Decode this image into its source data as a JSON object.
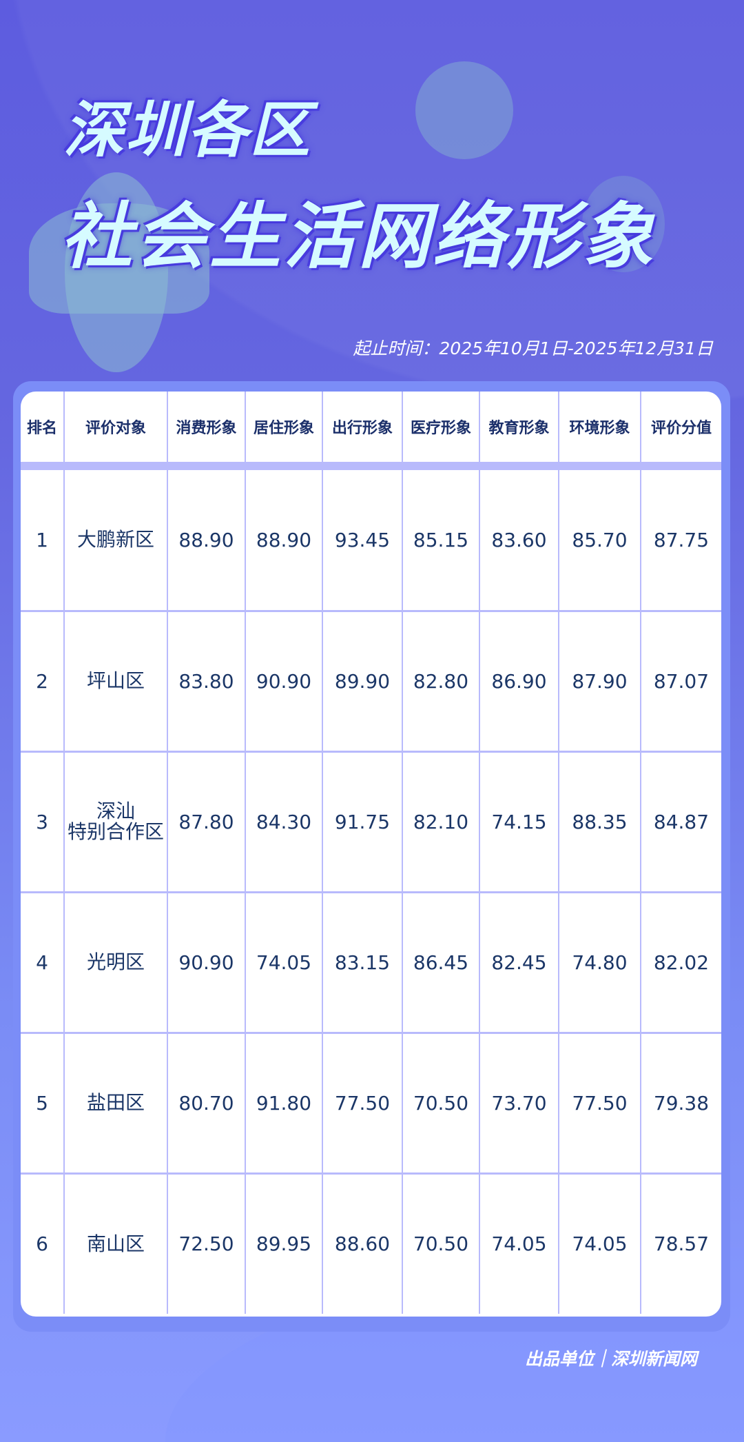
{
  "title": {
    "line1": "深圳各区",
    "line2": "社会生活网络形象"
  },
  "date_range": "起止时间：2025年10月1日-2025年12月31日",
  "table": {
    "headers": [
      "排名",
      "评价对象",
      "消费形象",
      "居住形象",
      "出行形象",
      "医疗形象",
      "教育形象",
      "环境形象",
      "评价分值"
    ],
    "rows": [
      [
        "1",
        "大鹏新区",
        "88.90",
        "88.90",
        "93.45",
        "85.15",
        "83.60",
        "85.70",
        "87.75"
      ],
      [
        "2",
        "坪山区",
        "83.80",
        "90.90",
        "89.90",
        "82.80",
        "86.90",
        "87.90",
        "87.07"
      ],
      [
        "3",
        "深汕\n特别合作区",
        "87.80",
        "84.30",
        "91.75",
        "82.10",
        "74.15",
        "88.35",
        "84.87"
      ],
      [
        "4",
        "光明区",
        "90.90",
        "74.05",
        "83.15",
        "86.45",
        "82.45",
        "74.80",
        "82.02"
      ],
      [
        "5",
        "盐田区",
        "80.70",
        "91.80",
        "77.50",
        "70.50",
        "73.70",
        "77.50",
        "79.38"
      ],
      [
        "6",
        "南山区",
        "72.50",
        "89.95",
        "88.60",
        "70.50",
        "74.05",
        "74.05",
        "78.57"
      ]
    ]
  },
  "footer": "出品单位｜深圳新闻网",
  "colors": {
    "grid": "#b8bafc",
    "text": "#1b3667",
    "title": "#d6fbff"
  }
}
